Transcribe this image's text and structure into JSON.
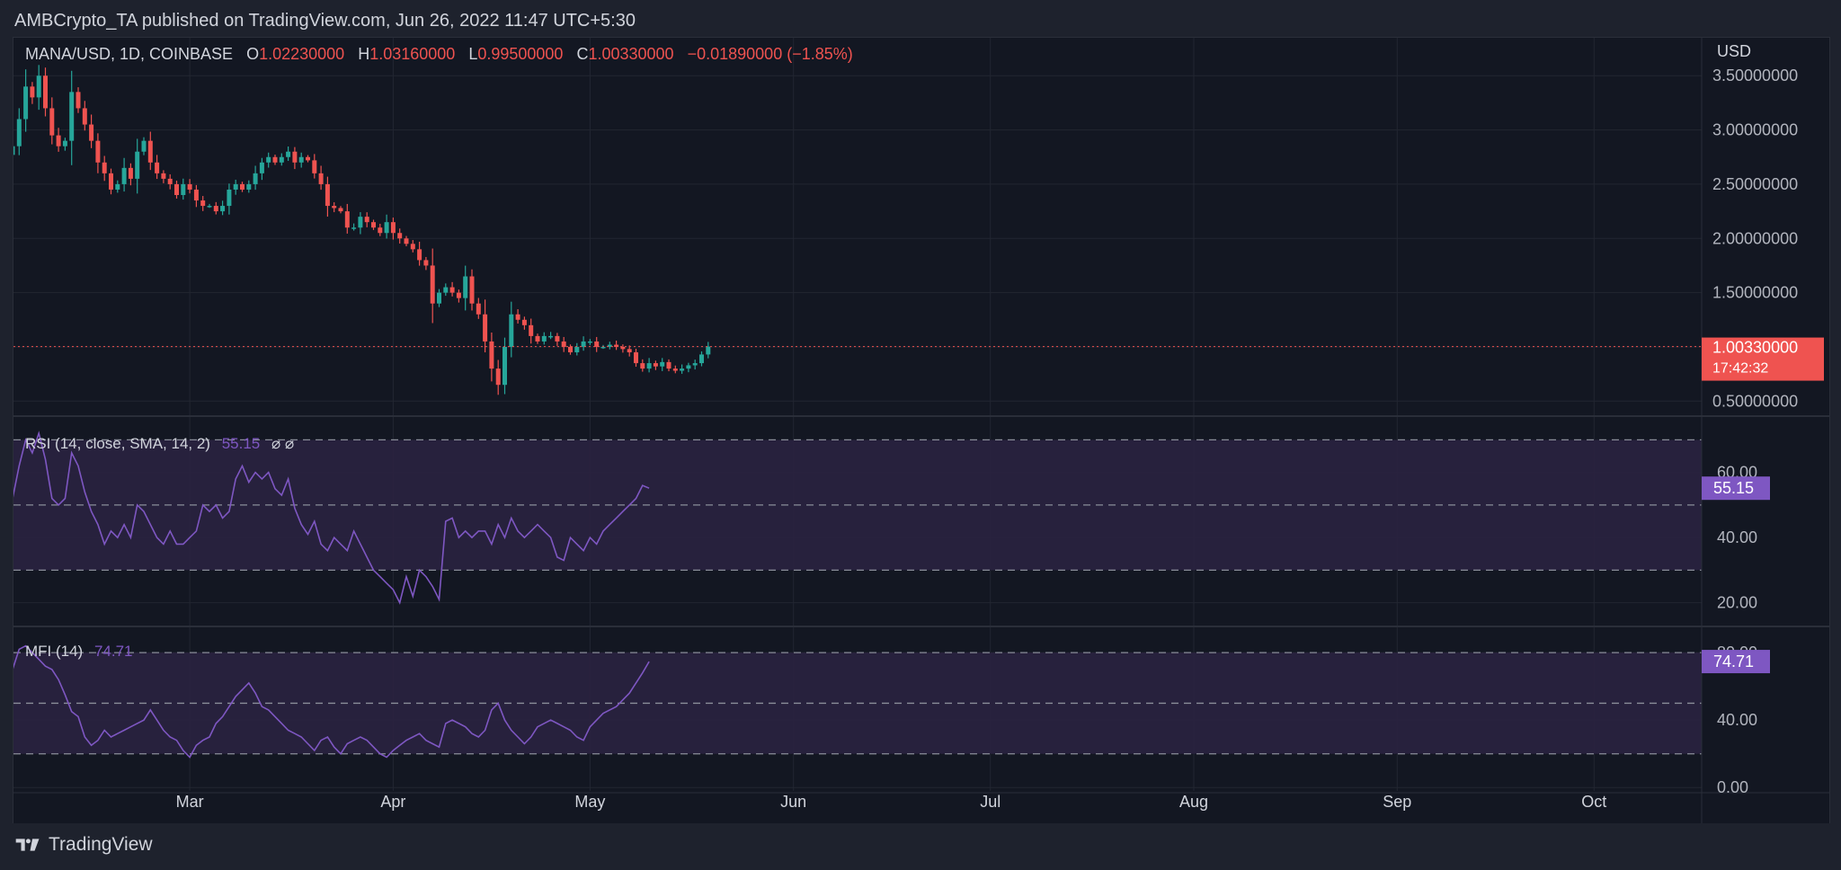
{
  "header": {
    "publisher_line": "AMBCrypto_TA published on TradingView.com, Jun 26, 2022 11:47 UTC+5:30"
  },
  "footer": {
    "brand": "TradingView",
    "logo_icon": "tradingview-logo-icon"
  },
  "colors": {
    "background": "#131722",
    "grid": "#222631",
    "up": "#26a69a",
    "down": "#ef5350",
    "text": "#d1d4dc",
    "axis_text": "#b2b5be",
    "indicator": "#7e57c2",
    "indicator_band": "#2a2240"
  },
  "chart_data": [
    {
      "type": "candlestick",
      "symbol_line": {
        "symbol": "MANA/USD, 1D, COINBASE",
        "o_label": "O",
        "o_value": "1.02230000",
        "h_label": "H",
        "h_value": "1.03160000",
        "l_label": "L",
        "l_value": "0.99500000",
        "c_label": "C",
        "c_value": "1.00330000",
        "change": "−0.01890000 (−1.85%)"
      },
      "currency": "USD",
      "y_ticks": [
        "3.50000000",
        "3.00000000",
        "2.50000000",
        "2.00000000",
        "1.50000000",
        "0.50000000"
      ],
      "y_tick_values": [
        3.5,
        3.0,
        2.5,
        2.0,
        1.5,
        0.5
      ],
      "ylim": [
        0.37,
        3.85
      ],
      "last_price_label": "1.00330000",
      "last_price": 1.0033,
      "countdown_label": "17:42:32",
      "x_ticks": [
        "Mar",
        "Apr",
        "May",
        "Jun",
        "Jul",
        "Aug",
        "Sep",
        "Oct"
      ],
      "x_tick_dates": [
        "2022-03-01",
        "2022-04-01",
        "2022-05-01",
        "2022-06-01",
        "2022-07-01",
        "2022-08-01",
        "2022-09-01",
        "2022-10-01"
      ],
      "first_date": "2022-02-02",
      "close": [
        2.85,
        3.1,
        3.4,
        3.3,
        3.5,
        3.2,
        2.95,
        2.85,
        2.9,
        3.35,
        3.2,
        3.05,
        2.9,
        2.7,
        2.6,
        2.45,
        2.5,
        2.65,
        2.55,
        2.8,
        2.9,
        2.7,
        2.6,
        2.55,
        2.5,
        2.4,
        2.5,
        2.45,
        2.35,
        2.3,
        2.3,
        2.25,
        2.3,
        2.45,
        2.5,
        2.45,
        2.5,
        2.6,
        2.7,
        2.75,
        2.7,
        2.75,
        2.8,
        2.7,
        2.75,
        2.72,
        2.6,
        2.5,
        2.3,
        2.28,
        2.25,
        2.1,
        2.1,
        2.2,
        2.15,
        2.1,
        2.05,
        2.15,
        2.05,
        2.0,
        1.95,
        1.9,
        1.8,
        1.75,
        1.4,
        1.5,
        1.55,
        1.5,
        1.45,
        1.65,
        1.4,
        1.3,
        1.05,
        0.8,
        0.65,
        1.0,
        1.3,
        1.25,
        1.2,
        1.1,
        1.05,
        1.1,
        1.1,
        1.05,
        1.0,
        0.95,
        1.0,
        1.05,
        1.05,
        1.0,
        1.0,
        1.02,
        1.0,
        0.98,
        0.95,
        0.85,
        0.8,
        0.85,
        0.82,
        0.86,
        0.8,
        0.78,
        0.8,
        0.83,
        0.85,
        0.93,
        1.0033
      ],
      "indicators": [
        {
          "type": "line",
          "label": "RSI (14, close, SMA, 14, 2)",
          "value_text": "55.15",
          "flags": "⌀ ⌀",
          "y_ticks": [
            "60.00",
            "40.00",
            "20.00"
          ],
          "y_tick_values": [
            60,
            40,
            20
          ],
          "band": [
            30,
            70
          ],
          "mid_line": 50,
          "ylim": [
            13,
            77
          ],
          "last_value": 55.15,
          "values": [
            52,
            62,
            70,
            66,
            72,
            64,
            52,
            50,
            52,
            66,
            62,
            54,
            48,
            44,
            38,
            42,
            40,
            44,
            40,
            50,
            48,
            44,
            40,
            38,
            42,
            38,
            38,
            40,
            42,
            50,
            48,
            50,
            46,
            48,
            58,
            62,
            57,
            60,
            58,
            60,
            55,
            53,
            58,
            49,
            44,
            41,
            45,
            38,
            36,
            40,
            38,
            36,
            42,
            38,
            34,
            30,
            28,
            26,
            24,
            20,
            28,
            22,
            30,
            28,
            25,
            21,
            45,
            46,
            40,
            42,
            40,
            42,
            42,
            38,
            44,
            40,
            46,
            42,
            40,
            42,
            44,
            42,
            40,
            34,
            33,
            40,
            38,
            36,
            40,
            38,
            42,
            44,
            46,
            48,
            50,
            52,
            56,
            55.15
          ]
        },
        {
          "type": "line",
          "label": "MFI (14)",
          "value_text": "74.71",
          "y_ticks": [
            "80.00",
            "40.00",
            "0.00"
          ],
          "y_tick_values": [
            80,
            40,
            0
          ],
          "band": [
            20,
            80
          ],
          "mid_line": 50,
          "ylim": [
            -2,
            95
          ],
          "last_value": 74.71,
          "values": [
            70,
            82,
            84,
            80,
            76,
            72,
            70,
            64,
            55,
            45,
            42,
            30,
            25,
            28,
            34,
            30,
            32,
            34,
            36,
            38,
            40,
            46,
            40,
            34,
            30,
            28,
            22,
            18,
            25,
            28,
            30,
            38,
            42,
            48,
            54,
            58,
            62,
            56,
            48,
            46,
            42,
            38,
            34,
            32,
            30,
            26,
            22,
            28,
            30,
            24,
            20,
            26,
            28,
            30,
            28,
            24,
            20,
            18,
            22,
            25,
            28,
            30,
            32,
            28,
            26,
            24,
            38,
            40,
            38,
            36,
            32,
            30,
            34,
            46,
            50,
            40,
            34,
            30,
            26,
            30,
            36,
            38,
            40,
            38,
            36,
            34,
            30,
            28,
            36,
            40,
            44,
            46,
            48,
            52,
            56,
            62,
            68,
            74.71
          ]
        }
      ]
    }
  ]
}
